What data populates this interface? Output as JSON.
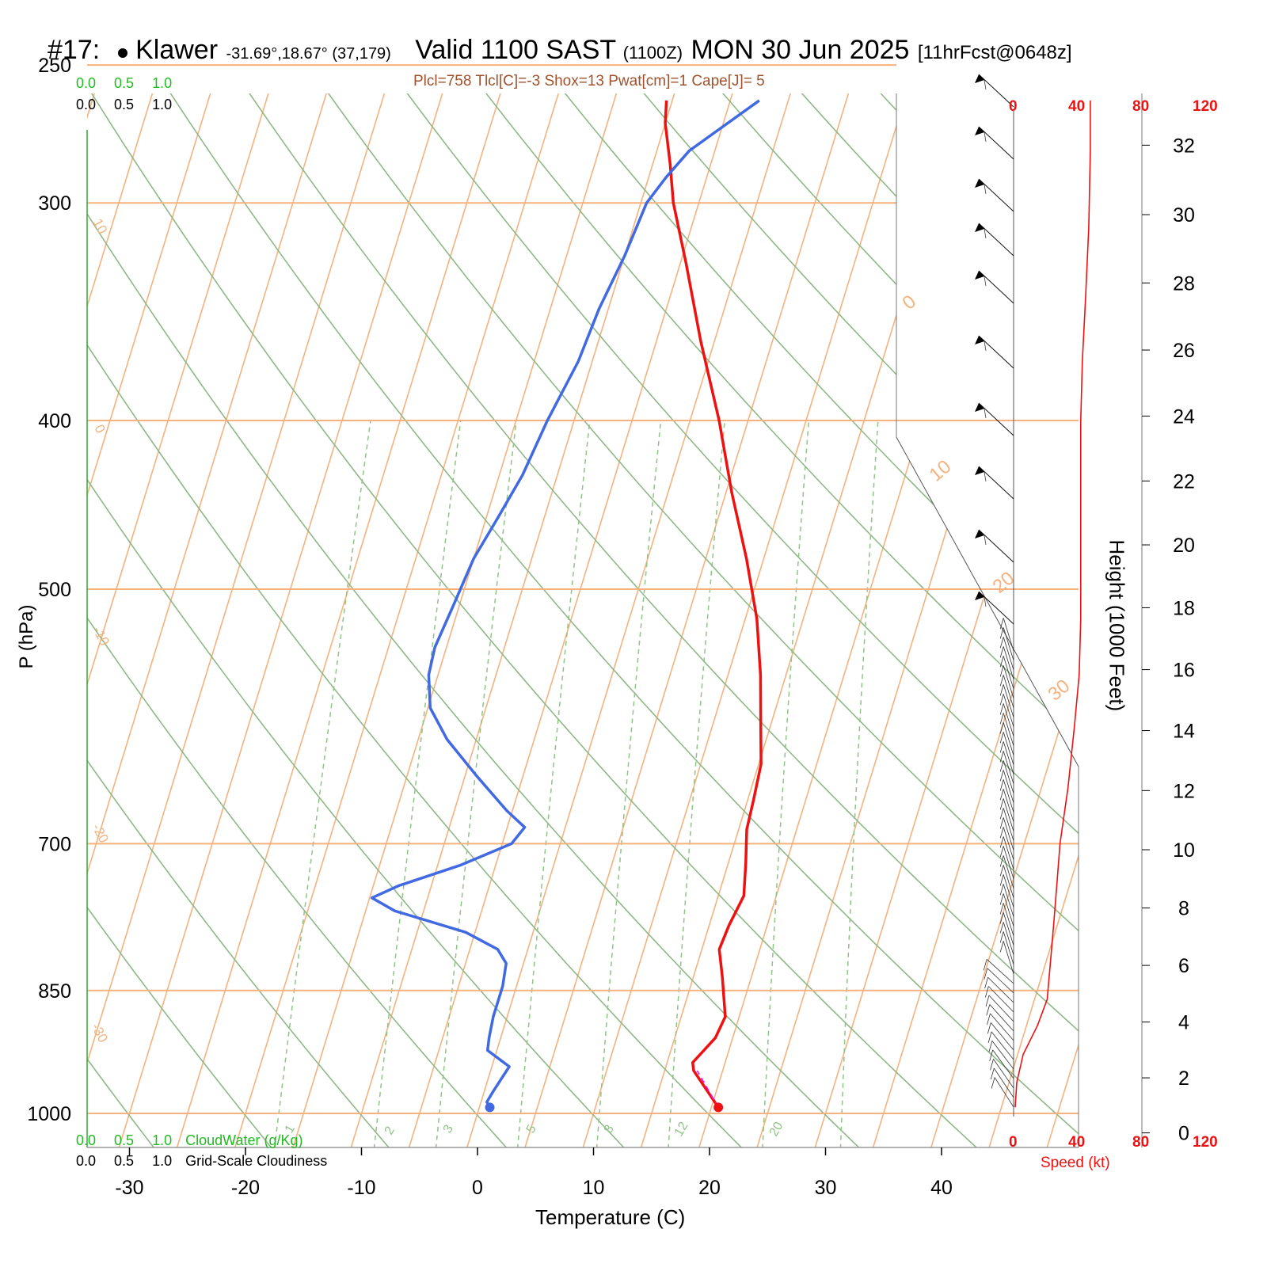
{
  "header": {
    "station_num": "#17:",
    "station_name": "Klawer",
    "coords": "-31.69°,18.67° (37,179)",
    "valid": "Valid 1100 SAST",
    "valid_z": "(1100Z)",
    "date": "MON 30 Jun 2025",
    "fcst": "[11hrFcst@0648z]",
    "indices": "Plcl=758 Tlcl[C]=-3 Shox=13 Pwat[cm]=1 Cape[J]= 5"
  },
  "scales": {
    "top_green": [
      "0.0",
      "0.5",
      "1.0"
    ],
    "top_black": [
      "0.0",
      "0.5",
      "1.0"
    ],
    "bottom_green": [
      "0.0",
      "0.5",
      "1.0"
    ],
    "bottom_black": [
      "0.0",
      "0.5",
      "1.0"
    ],
    "cloudwater_label": "CloudWater (g/Kg)",
    "cloudiness_label": "Grid-Scale Cloudiness",
    "speed_ticks": [
      "0",
      "40",
      "80",
      "120"
    ],
    "speed_label": "Speed (kt)"
  },
  "colors": {
    "temperature": "#ee1111",
    "dewpoint": "#4169e1",
    "isotherm": "#f5b27e",
    "dry_adiabat": "#8fb887",
    "mixing_ratio": "#8fc487",
    "speed": "#ee1111",
    "header_text": "#a0522d",
    "green_text": "#22bb22"
  },
  "chart_data": {
    "type": "line",
    "xlabel": "Temperature (C)",
    "ylabel": "P (hPa)",
    "y2label": "Height (1000 Feet)",
    "x_ticks": [
      -30,
      -20,
      -10,
      0,
      10,
      20,
      30,
      40
    ],
    "p_ticks": [
      250,
      300,
      400,
      500,
      700,
      850,
      1000
    ],
    "height_ticks": [
      0,
      2,
      4,
      6,
      8,
      10,
      12,
      14,
      16,
      18,
      20,
      22,
      24,
      26,
      28,
      30,
      32
    ],
    "isotherm_labels": [
      {
        "t": 10,
        "text": "10"
      },
      {
        "t": 0,
        "text": "0"
      },
      {
        "t": -10,
        "text": "-10"
      },
      {
        "t": -20,
        "text": "-20"
      },
      {
        "t": -30,
        "text": "-30"
      }
    ],
    "isotherm_labels_right": [
      {
        "t": 0,
        "text": "0"
      },
      {
        "t": 10,
        "text": "10"
      },
      {
        "t": 20,
        "text": "20"
      },
      {
        "t": 30,
        "text": "30"
      }
    ],
    "mixing_ratio_labels": [
      "1",
      "2",
      "3",
      "5",
      "8",
      "12",
      "20"
    ],
    "series": [
      {
        "name": "Temperature",
        "points": [
          [
            20.6,
            992
          ],
          [
            17.5,
            945
          ],
          [
            17.2,
            935
          ],
          [
            18.5,
            905
          ],
          [
            18.8,
            880
          ],
          [
            17.5,
            835
          ],
          [
            16.5,
            805
          ],
          [
            16.7,
            780
          ],
          [
            17.2,
            750
          ],
          [
            16.5,
            718
          ],
          [
            15.7,
            687
          ],
          [
            15.5,
            660
          ],
          [
            15.2,
            630
          ],
          [
            14.2,
            600
          ],
          [
            12.8,
            560
          ],
          [
            11.0,
            520
          ],
          [
            8.5,
            480
          ],
          [
            5.5,
            440
          ],
          [
            2.5,
            400
          ],
          [
            -1.2,
            360
          ],
          [
            -4.5,
            325
          ],
          [
            -7.2,
            300
          ],
          [
            -8.5,
            285
          ],
          [
            -10.0,
            270
          ],
          [
            -10.5,
            262
          ]
        ]
      },
      {
        "name": "Dewpoint",
        "points": [
          [
            0.9,
            992
          ],
          [
            0.5,
            985
          ],
          [
            0.8,
            970
          ],
          [
            1.5,
            940
          ],
          [
            -0.8,
            920
          ],
          [
            -1.0,
            905
          ],
          [
            -1.2,
            880
          ],
          [
            -1.2,
            845
          ],
          [
            -1.5,
            820
          ],
          [
            -2.6,
            805
          ],
          [
            -5.8,
            787
          ],
          [
            -12.5,
            765
          ],
          [
            -14.8,
            752
          ],
          [
            -12.8,
            740
          ],
          [
            -8.0,
            720
          ],
          [
            -4.2,
            700
          ],
          [
            -3.5,
            685
          ],
          [
            -5.5,
            670
          ],
          [
            -9.0,
            640
          ],
          [
            -12.5,
            610
          ],
          [
            -14.8,
            585
          ],
          [
            -15.8,
            560
          ],
          [
            -16.0,
            540
          ],
          [
            -15.5,
            510
          ],
          [
            -15.0,
            480
          ],
          [
            -14.0,
            455
          ],
          [
            -13.0,
            430
          ],
          [
            -12.3,
            400
          ],
          [
            -11.2,
            370
          ],
          [
            -10.8,
            345
          ],
          [
            -10.0,
            322
          ],
          [
            -9.5,
            300
          ],
          [
            -8.5,
            290
          ],
          [
            -7.2,
            280
          ],
          [
            -2.5,
            262
          ]
        ]
      }
    ],
    "surface_points": [
      {
        "name": "Temperature",
        "t": 20.6,
        "p": 992
      },
      {
        "name": "Dewpoint",
        "t": 0.9,
        "p": 992
      }
    ],
    "speed_profile": [
      [
        0,
        992
      ],
      [
        1,
        960
      ],
      [
        5,
        925
      ],
      [
        14,
        890
      ],
      [
        20,
        860
      ],
      [
        22,
        820
      ],
      [
        24,
        780
      ],
      [
        26,
        740
      ],
      [
        28,
        700
      ],
      [
        33,
        650
      ],
      [
        37,
        600
      ],
      [
        40,
        560
      ],
      [
        41,
        520
      ],
      [
        41,
        480
      ],
      [
        41,
        440
      ],
      [
        41,
        400
      ],
      [
        42,
        370
      ],
      [
        44,
        340
      ],
      [
        46,
        310
      ],
      [
        47,
        280
      ],
      [
        47,
        262
      ]
    ]
  }
}
